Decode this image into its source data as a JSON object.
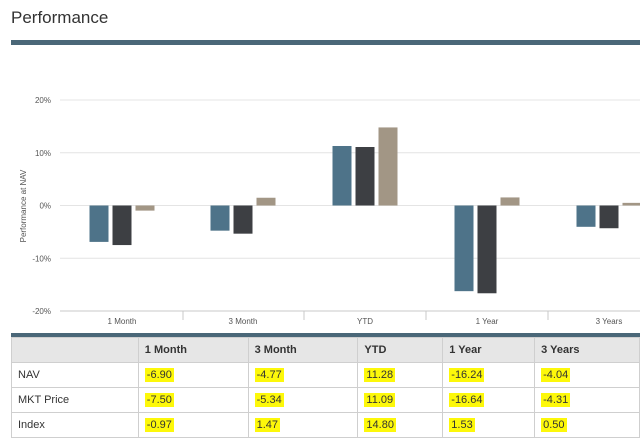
{
  "page": {
    "title": "Performance"
  },
  "chart_data": {
    "type": "bar",
    "categories": [
      "1 Month",
      "3 Month",
      "YTD",
      "1 Year",
      "3 Years"
    ],
    "series": [
      {
        "name": "NAV",
        "color": "#4e7389",
        "values": [
          -6.9,
          -4.77,
          11.28,
          -16.24,
          -4.04
        ]
      },
      {
        "name": "MKT Price",
        "color": "#3d3f43",
        "values": [
          -7.5,
          -5.34,
          11.09,
          -16.64,
          -4.31
        ]
      },
      {
        "name": "Index",
        "color": "#a29685",
        "values": [
          -0.97,
          1.47,
          14.8,
          1.53,
          0.5
        ]
      }
    ],
    "ylabel": "Performance at NAV",
    "ylim": [
      -20,
      20
    ],
    "yticks": [
      "20%",
      "10%",
      "0%",
      "-10%",
      "-20%"
    ],
    "grid": true
  },
  "table": {
    "columns": [
      "",
      "1 Month",
      "3 Month",
      "YTD",
      "1 Year",
      "3 Years"
    ],
    "rows": [
      {
        "label": "NAV",
        "cells": [
          "-6.90",
          "-4.77",
          "11.28",
          "-16.24",
          "-4.04"
        ]
      },
      {
        "label": "MKT Price",
        "cells": [
          "-7.50",
          "-5.34",
          "11.09",
          "-16.64",
          "-4.31"
        ]
      },
      {
        "label": "Index",
        "cells": [
          "-0.97",
          "1.47",
          "14.80",
          "1.53",
          "0.50"
        ]
      }
    ]
  },
  "colors": {
    "accent_rule": "#4a6778",
    "highlight": "#fdf80a"
  }
}
